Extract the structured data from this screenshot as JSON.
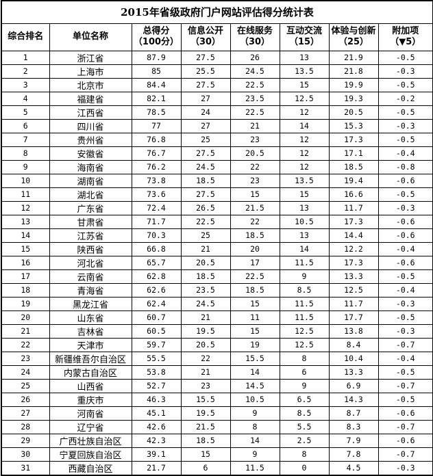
{
  "title": "2015年省级政府门户网站评估得分统计表",
  "headers": [
    {
      "l1": "综合排名",
      "l2": ""
    },
    {
      "l1": "单位名称",
      "l2": ""
    },
    {
      "l1": "总得分",
      "l2": "（100分）"
    },
    {
      "l1": "信息公开",
      "l2": "（30）"
    },
    {
      "l1": "在线服务",
      "l2": "（30）"
    },
    {
      "l1": "互动交流",
      "l2": "（15）"
    },
    {
      "l1": "体验与创新",
      "l2": "（25）"
    },
    {
      "l1": "附加项",
      "l2": "（▼5）"
    }
  ],
  "rows": [
    [
      "1",
      "浙江省",
      "87.9",
      "27.5",
      "26",
      "13",
      "21.9",
      "-0.5"
    ],
    [
      "2",
      "上海市",
      "85",
      "25.5",
      "24.5",
      "13.5",
      "21.8",
      "-0.3"
    ],
    [
      "3",
      "北京市",
      "84.4",
      "27.5",
      "22.5",
      "15",
      "19.9",
      "-0.5"
    ],
    [
      "4",
      "福建省",
      "82.1",
      "27",
      "23.5",
      "12.5",
      "19.3",
      "-0.2"
    ],
    [
      "5",
      "江西省",
      "78.5",
      "24",
      "22.5",
      "12",
      "20.5",
      "-0.5"
    ],
    [
      "6",
      "四川省",
      "77",
      "27",
      "21",
      "14",
      "15.3",
      "-0.3"
    ],
    [
      "7",
      "贵州省",
      "76.8",
      "25",
      "23",
      "12",
      "17.3",
      "-0.5"
    ],
    [
      "8",
      "安徽省",
      "76.7",
      "27.5",
      "20.5",
      "12",
      "17.1",
      "-0.4"
    ],
    [
      "9",
      "海南省",
      "76.2",
      "24.5",
      "22",
      "12",
      "18.5",
      "-0.8"
    ],
    [
      "10",
      "湖南省",
      "73.8",
      "18.5",
      "23",
      "13.5",
      "19.4",
      "-0.6"
    ],
    [
      "11",
      "湖北省",
      "73.6",
      "27.5",
      "15",
      "15",
      "16.6",
      "-0.5"
    ],
    [
      "12",
      "广东省",
      "72.4",
      "26.5",
      "21.5",
      "13",
      "11.7",
      "-0.3"
    ],
    [
      "13",
      "甘肃省",
      "71.7",
      "22.5",
      "22",
      "10.5",
      "17.3",
      "-0.6"
    ],
    [
      "14",
      "江苏省",
      "70.3",
      "25",
      "18.5",
      "13",
      "14.4",
      "-0.6"
    ],
    [
      "15",
      "陕西省",
      "66.8",
      "21",
      "20",
      "14",
      "12.2",
      "-0.4"
    ],
    [
      "16",
      "河北省",
      "65.7",
      "20.5",
      "17",
      "11.5",
      "17.3",
      "-0.6"
    ],
    [
      "17",
      "云南省",
      "62.8",
      "18.5",
      "22.5",
      "9",
      "13.3",
      "-0.5"
    ],
    [
      "18",
      "青海省",
      "62.6",
      "23.5",
      "18.5",
      "8.5",
      "12.5",
      "-0.4"
    ],
    [
      "19",
      "黑龙江省",
      "62.4",
      "24.5",
      "15",
      "11.5",
      "11.7",
      "-0.3"
    ],
    [
      "20",
      "山东省",
      "60.7",
      "21",
      "11",
      "11.5",
      "17.7",
      "-0.5"
    ],
    [
      "21",
      "吉林省",
      "60.5",
      "19.5",
      "15",
      "12.5",
      "13.8",
      "-0.3"
    ],
    [
      "22",
      "天津市",
      "59.7",
      "20.5",
      "19",
      "12.5",
      "8.4",
      "-0.7"
    ],
    [
      "23",
      "新疆维吾尔自治区",
      "55.5",
      "22",
      "15.5",
      "8",
      "10.4",
      "-0.4"
    ],
    [
      "24",
      "内蒙古自治区",
      "53.8",
      "21",
      "14",
      "6",
      "13.3",
      "-0.5"
    ],
    [
      "25",
      "山西省",
      "52.7",
      "23",
      "14.5",
      "9",
      "6.9",
      "-0.7"
    ],
    [
      "26",
      "重庆市",
      "46.3",
      "15.5",
      "10.5",
      "6.5",
      "14.3",
      "-0.5"
    ],
    [
      "27",
      "河南省",
      "45.1",
      "19.5",
      "9",
      "8.5",
      "8.7",
      "-0.6"
    ],
    [
      "28",
      "辽宁省",
      "42.6",
      "21.5",
      "8",
      "5.5",
      "8.3",
      "-0.7"
    ],
    [
      "29",
      "广西壮族自治区",
      "42.3",
      "18.5",
      "14",
      "2.5",
      "7.9",
      "-0.6"
    ],
    [
      "30",
      "宁夏回族自治区",
      "39.1",
      "15",
      "9",
      "8",
      "7.8",
      "-0.7"
    ],
    [
      "31",
      "西藏自治区",
      "21.7",
      "6",
      "11.5",
      "0",
      "4.5",
      "-0.3"
    ]
  ]
}
